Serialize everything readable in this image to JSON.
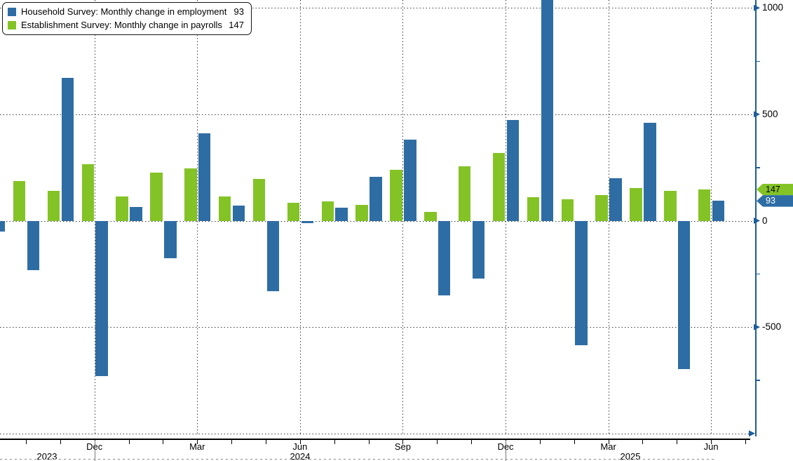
{
  "colors": {
    "household_blue": "#2E6DA4",
    "establishment_green": "#84C326",
    "axis_blue": "#1D5C99",
    "background": "#FFFFFF",
    "gridline": "#3D3D3D"
  },
  "legend": {
    "items": [
      {
        "label": "Household Survey: Monthly change in employment",
        "value": "93",
        "color": "#2E6DA4"
      },
      {
        "label": "Establishment Survey: Monthly change in payrolls",
        "value": "147",
        "color": "#84C326"
      }
    ]
  },
  "y_axis": {
    "side": "right",
    "labels": [
      "1000",
      "500",
      "0",
      "-500"
    ],
    "label_values": [
      1000,
      500,
      0,
      -500
    ],
    "minor_tick_values": [
      750,
      250,
      -250,
      -750
    ],
    "bottom_gridline_value": -1000
  },
  "x_axis": {
    "quarter_labels": [
      "Dec",
      "Mar",
      "Jun",
      "Sep",
      "Dec",
      "Mar",
      "Jun"
    ],
    "year_labels": [
      "2023",
      "2024",
      "2025"
    ]
  },
  "value_tags": [
    {
      "value": "147",
      "bg": "#84C326",
      "fg": "#000000",
      "series": "establishment"
    },
    {
      "value": "93",
      "bg": "#2E6DA4",
      "fg": "#FFFFFF",
      "series": "household"
    }
  ],
  "chart_data": {
    "type": "bar",
    "unit": "thousands of jobs, monthly change",
    "ylim": [
      -1000,
      1000
    ],
    "grid": true,
    "legend_position": "top-left",
    "y_gridlines": [
      1000,
      500,
      0,
      -500,
      -1000
    ],
    "series": [
      {
        "name": "Household Survey: Monthly change in employment",
        "key": "household",
        "color": "#2E6DA4",
        "latest": 93
      },
      {
        "name": "Establishment Survey: Monthly change in payrolls",
        "key": "establishment",
        "color": "#84C326",
        "latest": 147
      }
    ],
    "months": [
      {
        "label": "Sep 2023",
        "establishment": null,
        "household": -50,
        "household_clipped_left": true
      },
      {
        "label": "Oct 2023",
        "establishment": 185,
        "household": -230
      },
      {
        "label": "Nov 2023",
        "establishment": 140,
        "household": 670
      },
      {
        "label": "Dec 2023",
        "establishment": 265,
        "household": -730,
        "axis_label": "Dec",
        "gridline": true,
        "year_separator": true
      },
      {
        "label": "Jan 2024",
        "establishment": 115,
        "household": 65
      },
      {
        "label": "Feb 2024",
        "establishment": 225,
        "household": -175
      },
      {
        "label": "Mar 2024",
        "establishment": 245,
        "household": 410,
        "axis_label": "Mar",
        "gridline": true
      },
      {
        "label": "Apr 2024",
        "establishment": 115,
        "household": 70
      },
      {
        "label": "May 2024",
        "establishment": 195,
        "household": -330
      },
      {
        "label": "Jun 2024",
        "establishment": 85,
        "household": -10,
        "axis_label": "Jun",
        "gridline": true
      },
      {
        "label": "Jul 2024",
        "establishment": 90,
        "household": 60
      },
      {
        "label": "Aug 2024",
        "establishment": 75,
        "household": 205
      },
      {
        "label": "Sep 2024",
        "establishment": 240,
        "household": 380,
        "axis_label": "Sep",
        "gridline": true
      },
      {
        "label": "Oct 2024",
        "establishment": 40,
        "household": -350
      },
      {
        "label": "Nov 2024",
        "establishment": 255,
        "household": -270
      },
      {
        "label": "Dec 2024",
        "establishment": 320,
        "household": 475,
        "axis_label": "Dec",
        "gridline": true,
        "year_separator": true
      },
      {
        "label": "Jan 2025",
        "establishment": 110,
        "household": 2234,
        "household_clipped_top": true
      },
      {
        "label": "Feb 2025",
        "establishment": 100,
        "household": -585
      },
      {
        "label": "Mar 2025",
        "establishment": 120,
        "household": 200,
        "axis_label": "Mar",
        "gridline": true
      },
      {
        "label": "Apr 2025",
        "establishment": 155,
        "household": 460
      },
      {
        "label": "May 2025",
        "establishment": 140,
        "household": -696
      },
      {
        "label": "Jun 2025",
        "establishment": 147,
        "household": 93,
        "axis_label": "Jun",
        "gridline": true
      }
    ]
  }
}
